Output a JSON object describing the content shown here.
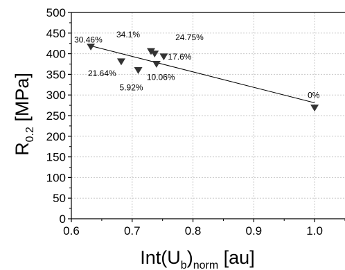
{
  "chart_data": {
    "type": "scatter",
    "xlabel": {
      "main": "Int(U",
      "sub1": "b",
      "close": ")",
      "sub2": "norm",
      "unit": " [au]"
    },
    "ylabel": {
      "main": "R",
      "sub": "0.2",
      "unit": " [MPa]"
    },
    "xlim": [
      0.6,
      1.05
    ],
    "ylim": [
      0,
      500
    ],
    "x_ticks": [
      0.6,
      0.7,
      0.8,
      0.9,
      1.0
    ],
    "x_tick_labels": [
      "0.6",
      "0.7",
      "0.8",
      "0.9",
      "1.0"
    ],
    "y_ticks": [
      0,
      50,
      100,
      150,
      200,
      250,
      300,
      350,
      400,
      450,
      500
    ],
    "y_tick_labels": [
      "0",
      "50",
      "100",
      "150",
      "200",
      "250",
      "300",
      "350",
      "400",
      "450",
      "500"
    ],
    "grid": true,
    "marker": "triangle-down",
    "marker_color": "#333333",
    "points": [
      {
        "x": 0.632,
        "y": 417,
        "label": "30.46%"
      },
      {
        "x": 0.682,
        "y": 381,
        "label": "21.64%"
      },
      {
        "x": 0.71,
        "y": 360,
        "label": "5.92%"
      },
      {
        "x": 0.731,
        "y": 406,
        "label": "34.1%"
      },
      {
        "x": 0.737,
        "y": 400,
        "label": ""
      },
      {
        "x": 0.74,
        "y": 375,
        "label": "10.06%"
      },
      {
        "x": 0.752,
        "y": 393,
        "label": "17.6%"
      },
      {
        "x": 1.0,
        "y": 269,
        "label": "0%"
      }
    ],
    "floating_labels": [
      {
        "text": "24.75%",
        "x": 0.771,
        "y": 433
      }
    ],
    "trendline": {
      "x": [
        0.632,
        1.0
      ],
      "y": [
        419,
        281
      ]
    }
  }
}
